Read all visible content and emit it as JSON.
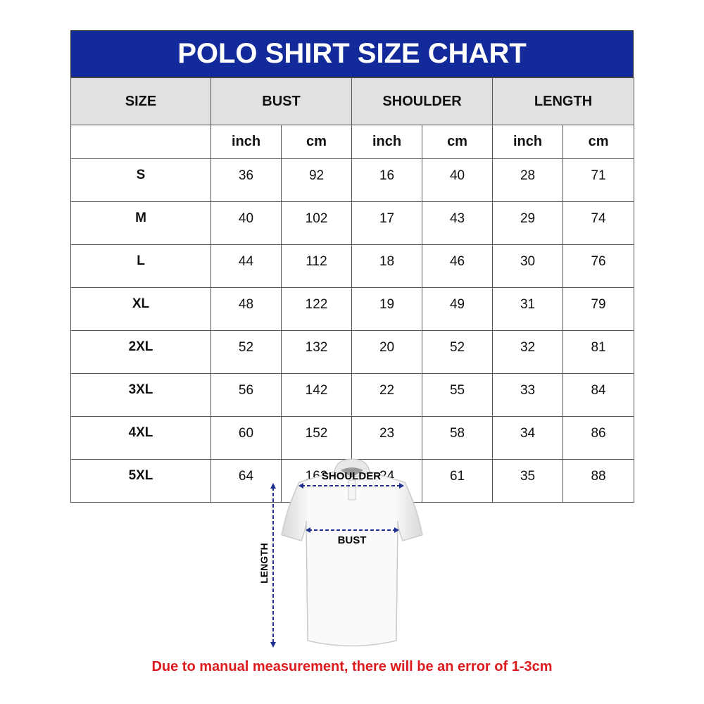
{
  "title": "POLO SHIRT SIZE CHART",
  "headers": {
    "size": "SIZE",
    "bust": "BUST",
    "shoulder": "SHOULDER",
    "length": "LENGTH"
  },
  "units": [
    "inch",
    "cm",
    "inch",
    "cm",
    "inch",
    "cm"
  ],
  "rows": [
    {
      "size": "S",
      "values": [
        "36",
        "92",
        "16",
        "40",
        "28",
        "71"
      ]
    },
    {
      "size": "M",
      "values": [
        "40",
        "102",
        "17",
        "43",
        "29",
        "74"
      ]
    },
    {
      "size": "L",
      "values": [
        "44",
        "112",
        "18",
        "46",
        "30",
        "76"
      ]
    },
    {
      "size": "XL",
      "values": [
        "48",
        "122",
        "19",
        "49",
        "31",
        "79"
      ]
    },
    {
      "size": "2XL",
      "values": [
        "52",
        "132",
        "20",
        "52",
        "32",
        "81"
      ]
    },
    {
      "size": "3XL",
      "values": [
        "56",
        "142",
        "22",
        "55",
        "33",
        "84"
      ]
    },
    {
      "size": "4XL",
      "values": [
        "60",
        "152",
        "23",
        "58",
        "34",
        "86"
      ]
    },
    {
      "size": "5XL",
      "values": [
        "64",
        "162",
        "24",
        "61",
        "35",
        "88"
      ]
    }
  ],
  "diagram": {
    "shoulder_label": "SHOULDER",
    "bust_label": "BUST",
    "length_label": "LENGTH"
  },
  "note": "Due to manual measurement, there will be an error of 1-3cm",
  "colors": {
    "title_bg": "#132a9a",
    "header_bg": "#e1e1e1",
    "note": "#dd1a1d",
    "arrow": "#1f2f8f"
  }
}
